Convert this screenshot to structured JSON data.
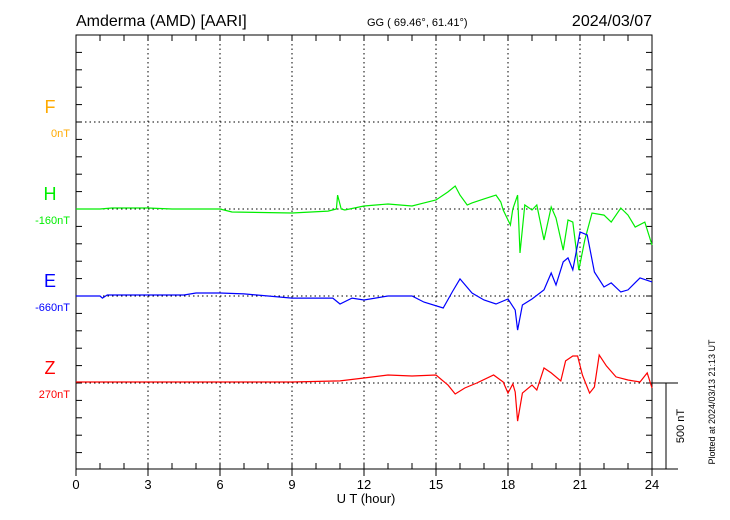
{
  "chart_data": {
    "type": "line",
    "title": "Amderma (AMD)  [AARI]",
    "coords": "GG ( 69.46°,  61.41°)",
    "date": "2024/03/07",
    "xlabel": "U T (hour)",
    "xlim": [
      0,
      24
    ],
    "xticks": [
      "0",
      "3",
      "6",
      "9",
      "12",
      "15",
      "18",
      "21",
      "24"
    ],
    "scale_bar_label": "500 nT",
    "scale_bar_nT": 500,
    "plotted_note": "Plotted at 2024/03/13 21:13 UT",
    "grid": true,
    "series": [
      {
        "name": "F",
        "offset_label": "0nT",
        "color": "#ffaa00",
        "points": []
      },
      {
        "name": "H",
        "offset_label": "-160nT",
        "color": "#00ee00",
        "points": [
          [
            0,
            0
          ],
          [
            1,
            0
          ],
          [
            1.5,
            6
          ],
          [
            3,
            6
          ],
          [
            4,
            0
          ],
          [
            6,
            0
          ],
          [
            6.5,
            -17
          ],
          [
            9,
            -23
          ],
          [
            10.5,
            -12
          ],
          [
            10.85,
            0
          ],
          [
            10.9,
            80
          ],
          [
            11.05,
            0
          ],
          [
            11.2,
            -6
          ],
          [
            12,
            17
          ],
          [
            13,
            29
          ],
          [
            14,
            17
          ],
          [
            14.5,
            35
          ],
          [
            15,
            52
          ],
          [
            15.5,
            98
          ],
          [
            15.8,
            132
          ],
          [
            16,
            80
          ],
          [
            16.3,
            23
          ],
          [
            16.5,
            35
          ],
          [
            17,
            58
          ],
          [
            17.5,
            80
          ],
          [
            17.7,
            40
          ],
          [
            17.8,
            -6
          ],
          [
            18.1,
            -92
          ],
          [
            18.2,
            0
          ],
          [
            18.4,
            80
          ],
          [
            18.5,
            -253
          ],
          [
            18.7,
            23
          ],
          [
            19,
            -6
          ],
          [
            19.2,
            23
          ],
          [
            19.5,
            -178
          ],
          [
            19.8,
            12
          ],
          [
            20,
            -52
          ],
          [
            20.3,
            -236
          ],
          [
            20.5,
            -63
          ],
          [
            20.7,
            -75
          ],
          [
            20.95,
            -351
          ],
          [
            21.2,
            -178
          ],
          [
            21.5,
            -23
          ],
          [
            22,
            -35
          ],
          [
            22.3,
            -75
          ],
          [
            22.7,
            6
          ],
          [
            23,
            -35
          ],
          [
            23.3,
            -104
          ],
          [
            23.7,
            -75
          ],
          [
            24,
            -207
          ]
        ]
      },
      {
        "name": "E",
        "offset_label": "-660nT",
        "color": "#0000ff",
        "points": [
          [
            0,
            0
          ],
          [
            1,
            0
          ],
          [
            1.1,
            -12
          ],
          [
            1.3,
            6
          ],
          [
            4.5,
            6
          ],
          [
            5,
            17
          ],
          [
            6,
            17
          ],
          [
            7,
            12
          ],
          [
            9,
            -12
          ],
          [
            10.7,
            -12
          ],
          [
            11,
            -46
          ],
          [
            11.5,
            -12
          ],
          [
            12,
            -23
          ],
          [
            13,
            0
          ],
          [
            14,
            0
          ],
          [
            14.5,
            -35
          ],
          [
            15.3,
            -69
          ],
          [
            15.7,
            29
          ],
          [
            16,
            98
          ],
          [
            16.5,
            17
          ],
          [
            17,
            -23
          ],
          [
            17.5,
            -46
          ],
          [
            18,
            -17
          ],
          [
            18.3,
            -81
          ],
          [
            18.4,
            -196
          ],
          [
            18.6,
            -52
          ],
          [
            19,
            -17
          ],
          [
            19.5,
            35
          ],
          [
            19.8,
            132
          ],
          [
            20,
            63
          ],
          [
            20.3,
            196
          ],
          [
            20.5,
            219
          ],
          [
            20.7,
            150
          ],
          [
            21,
            368
          ],
          [
            21.3,
            351
          ],
          [
            21.6,
            138
          ],
          [
            22,
            52
          ],
          [
            22.3,
            75
          ],
          [
            22.7,
            23
          ],
          [
            23,
            35
          ],
          [
            23.5,
            104
          ],
          [
            24,
            81
          ]
        ]
      },
      {
        "name": "Z",
        "offset_label": "270nT",
        "color": "#ff0000",
        "points": [
          [
            0,
            6
          ],
          [
            3,
            6
          ],
          [
            6,
            6
          ],
          [
            9,
            6
          ],
          [
            11,
            12
          ],
          [
            12,
            29
          ],
          [
            13,
            46
          ],
          [
            14,
            40
          ],
          [
            15,
            46
          ],
          [
            15.5,
            -12
          ],
          [
            15.8,
            -63
          ],
          [
            16.2,
            -29
          ],
          [
            16.7,
            0
          ],
          [
            17.4,
            46
          ],
          [
            17.8,
            6
          ],
          [
            18,
            -58
          ],
          [
            18.2,
            -6
          ],
          [
            18.3,
            -52
          ],
          [
            18.4,
            -219
          ],
          [
            18.6,
            -58
          ],
          [
            19,
            -12
          ],
          [
            19.2,
            -40
          ],
          [
            19.5,
            86
          ],
          [
            19.8,
            58
          ],
          [
            20.2,
            12
          ],
          [
            20.4,
            127
          ],
          [
            20.7,
            155
          ],
          [
            20.9,
            155
          ],
          [
            21.1,
            46
          ],
          [
            21.4,
            -58
          ],
          [
            21.6,
            -23
          ],
          [
            21.8,
            161
          ],
          [
            22.1,
            98
          ],
          [
            22.5,
            35
          ],
          [
            23,
            17
          ],
          [
            23.5,
            6
          ],
          [
            23.8,
            58
          ],
          [
            24,
            -29
          ]
        ]
      }
    ]
  }
}
